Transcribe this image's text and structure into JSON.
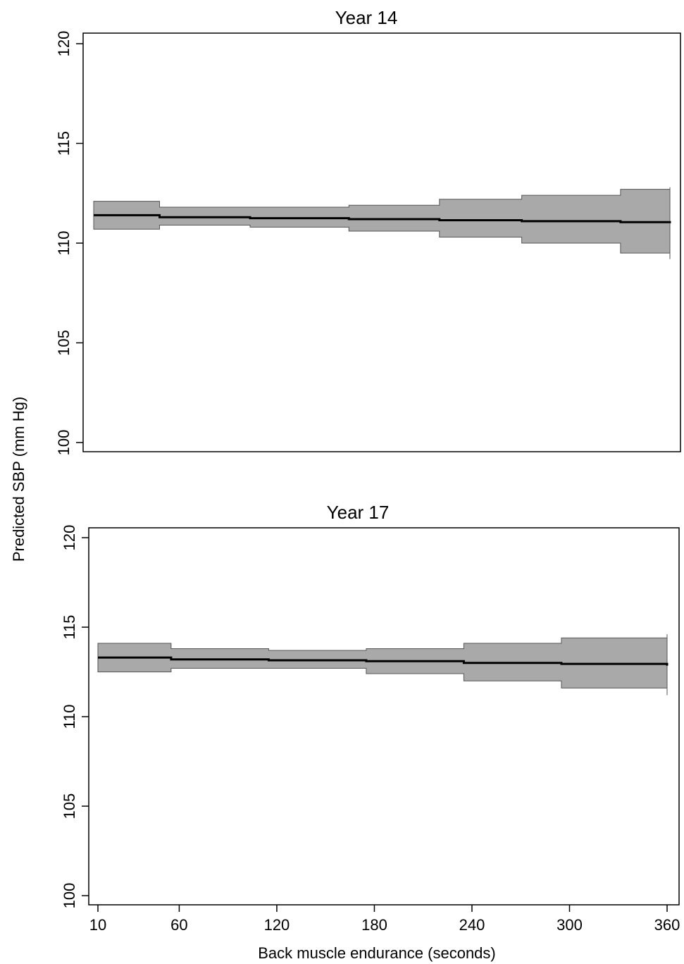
{
  "figure": {
    "ylabel": "Predicted SBP (mm Hg)",
    "xlabel": "Back muscle endurance (seconds)",
    "x_ticks": [
      10,
      60,
      120,
      180,
      240,
      300,
      360
    ]
  },
  "colors": {
    "ci_band": "#a9a9a9",
    "line": "#000000",
    "frame": "#000000"
  },
  "chart_data": [
    {
      "type": "area",
      "title": "Year 14",
      "ylabel": "Predicted SBP (mm Hg)",
      "xlim": [
        10,
        360
      ],
      "ylim": [
        100,
        120
      ],
      "y_ticks": [
        100,
        105,
        110,
        115,
        120
      ],
      "grid": false,
      "series": [
        {
          "x": [
            10,
            50,
            105,
            165,
            220,
            270,
            330,
            360
          ],
          "mean": [
            111.4,
            111.3,
            111.25,
            111.2,
            111.15,
            111.1,
            111.05,
            111.0
          ],
          "lower": [
            110.7,
            110.9,
            110.8,
            110.6,
            110.3,
            110.0,
            109.5,
            109.2
          ],
          "upper": [
            112.1,
            111.8,
            111.8,
            111.9,
            112.2,
            112.4,
            112.7,
            112.8
          ]
        }
      ]
    },
    {
      "type": "area",
      "title": "Year 17",
      "ylabel": "Predicted SBP (mm Hg)",
      "xlabel": "Back muscle endurance (seconds)",
      "xlim": [
        10,
        360
      ],
      "ylim": [
        100,
        120
      ],
      "y_ticks": [
        100,
        105,
        110,
        115,
        120
      ],
      "x_ticks": [
        10,
        60,
        120,
        180,
        240,
        300,
        360
      ],
      "grid": false,
      "series": [
        {
          "x": [
            10,
            55,
            115,
            175,
            235,
            295,
            360
          ],
          "mean": [
            113.3,
            113.2,
            113.15,
            113.1,
            113.0,
            112.95,
            112.85
          ],
          "lower": [
            112.5,
            112.7,
            112.7,
            112.4,
            112.0,
            111.6,
            111.2
          ],
          "upper": [
            114.1,
            113.8,
            113.7,
            113.8,
            114.1,
            114.4,
            114.6
          ]
        }
      ]
    }
  ]
}
